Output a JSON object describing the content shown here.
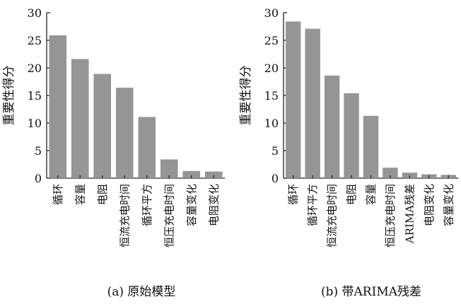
{
  "chart_data": [
    {
      "type": "bar",
      "caption": "(a)  原始模型",
      "ylabel": "重要性得分",
      "ylim": [
        0,
        30
      ],
      "yticks": [
        0,
        5,
        10,
        15,
        20,
        25,
        30
      ],
      "categories": [
        "循环",
        "容量",
        "电阻",
        "恒流充电时间",
        "循环平方",
        "恒压充电时间",
        "容量变化",
        "电阻变化"
      ],
      "values": [
        25.9,
        21.6,
        18.9,
        16.4,
        11.1,
        3.4,
        1.3,
        1.2
      ],
      "bar_color": "#959595",
      "grid": false
    },
    {
      "type": "bar",
      "caption": "(b)  带ARIMA残差",
      "ylabel": "重要性得分",
      "ylim": [
        0,
        30
      ],
      "yticks": [
        0,
        5,
        10,
        15,
        20,
        25,
        30
      ],
      "categories": [
        "循环",
        "循环平方",
        "恒流充电时间",
        "电阻",
        "容量",
        "恒压充电时间",
        "ARIMA残差",
        "电阻变化",
        "容量变化"
      ],
      "values": [
        28.4,
        27.1,
        18.6,
        15.4,
        11.3,
        1.9,
        1.0,
        0.7,
        0.6
      ],
      "bar_color": "#959595",
      "grid": false
    }
  ]
}
